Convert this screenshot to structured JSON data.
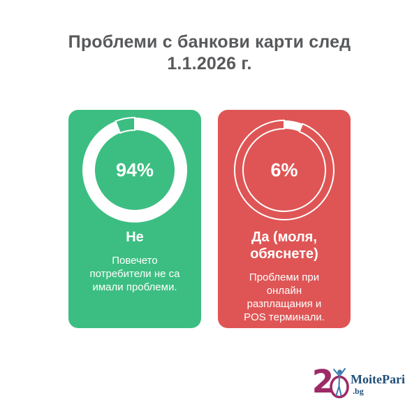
{
  "title": "Проблеми с банкови карти след\n1.1.2026 г.",
  "colors": {
    "background": "#FFFFFF",
    "title_text": "#58595B",
    "card_green": "#3CBE82",
    "card_red": "#DF5555",
    "card_text": "#FFFFFF",
    "ring_color": "#FFFFFF",
    "logo_magenta": "#9C2A66",
    "logo_dark_blue": "#1F4E78",
    "logo_figure_blue": "#3B7AB0"
  },
  "chart_data": {
    "type": "pie",
    "variant": "donut-cards",
    "title": "Проблеми с банкови карти след 1.1.2026 г.",
    "categories": [
      "Не",
      "Да (моля, обяснете)"
    ],
    "values": [
      94,
      6
    ],
    "unit": "%",
    "legend_position": "none",
    "cards": [
      {
        "category": "Не",
        "value_pct": 94,
        "center_label": "94%",
        "heading": "Не",
        "description": "Повечето\nпотребители не са\nимали проблеми.",
        "card_color": "#3CBE82"
      },
      {
        "category": "Да (моля, обяснете)",
        "value_pct": 6,
        "center_label": "6%",
        "heading": "Да (моля,\nобяснете)",
        "description": "Проблеми при\nонлайн\nразплащания и\nPOS терминали.",
        "card_color": "#DF5555"
      }
    ]
  },
  "logo": {
    "number": "2",
    "number_full": "20",
    "brand": "MoitePari",
    "tld": ".bg"
  }
}
